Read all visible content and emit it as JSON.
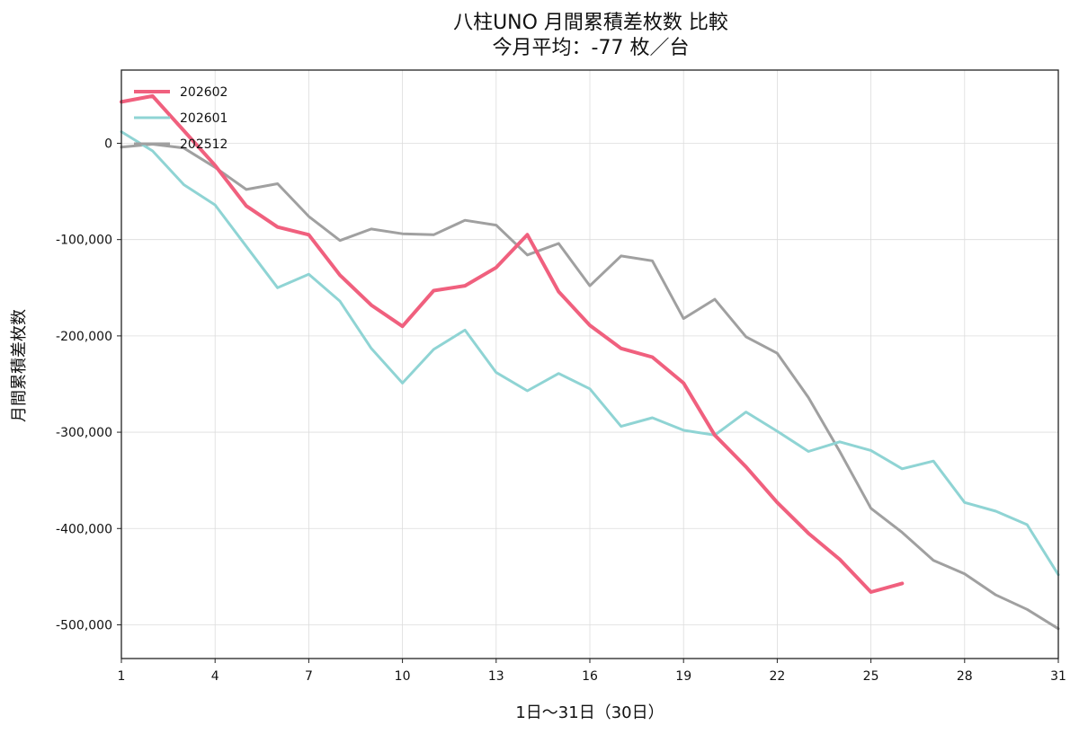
{
  "chart_data": {
    "type": "line",
    "title": "八柱UNO 月間累積差枚数 比較",
    "subtitle": "今月平均：-77 枚／台",
    "xlabel": "1日〜31日（30日）",
    "ylabel": "月間累積差枚数",
    "xlim": [
      1,
      31
    ],
    "ylim": [
      -535000,
      76000
    ],
    "xticks": [
      1,
      4,
      7,
      10,
      13,
      16,
      19,
      22,
      25,
      28,
      31
    ],
    "xtick_labels": [
      "1",
      "4",
      "7",
      "10",
      "13",
      "16",
      "19",
      "22",
      "25",
      "28",
      "31"
    ],
    "yticks": [
      0,
      -100000,
      -200000,
      -300000,
      -400000,
      -500000
    ],
    "ytick_labels": [
      "0",
      "-100,000",
      "-200,000",
      "-300,000",
      "-400,000",
      "-500,000"
    ],
    "grid": true,
    "legend_position": "top-left",
    "series": [
      {
        "name": "202602",
        "color": "#f0607e",
        "emphasis": true,
        "x": [
          1,
          2,
          3,
          4,
          5,
          6,
          7,
          8,
          9,
          10,
          11,
          12,
          13,
          14,
          15,
          16,
          17,
          18,
          19,
          20,
          21,
          22,
          23,
          24,
          25,
          26
        ],
        "values": [
          43000,
          49000,
          13000,
          -23000,
          -65000,
          -87000,
          -95000,
          -137000,
          -168000,
          -190000,
          -153000,
          -148000,
          -129000,
          -95000,
          -154000,
          -189000,
          -213000,
          -222000,
          -249000,
          -303000,
          -336000,
          -373000,
          -405000,
          -432000,
          -466000,
          -457000
        ]
      },
      {
        "name": "202601",
        "color": "#8fd4d4",
        "emphasis": false,
        "x": [
          1,
          2,
          3,
          4,
          5,
          6,
          7,
          8,
          9,
          10,
          11,
          12,
          13,
          14,
          15,
          16,
          17,
          18,
          19,
          20,
          21,
          22,
          23,
          24,
          25,
          26,
          27,
          28,
          29,
          30,
          31
        ],
        "values": [
          12000,
          -8000,
          -43000,
          -64000,
          -107000,
          -150000,
          -136000,
          -164000,
          -213000,
          -249000,
          -214000,
          -194000,
          -238000,
          -257000,
          -239000,
          -255000,
          -294000,
          -285000,
          -298000,
          -303000,
          -279000,
          -299000,
          -320000,
          -310000,
          -319000,
          -338000,
          -330000,
          -373000,
          -382000,
          -396000,
          -448000
        ]
      },
      {
        "name": "202512",
        "color": "#a0a0a0",
        "emphasis": false,
        "x": [
          1,
          2,
          3,
          4,
          5,
          6,
          7,
          8,
          9,
          10,
          11,
          12,
          13,
          14,
          15,
          16,
          17,
          18,
          19,
          20,
          21,
          22,
          23,
          24,
          25,
          26,
          27,
          28,
          29,
          30,
          31
        ],
        "values": [
          -4000,
          -1000,
          -5000,
          -25000,
          -48000,
          -42000,
          -76000,
          -101000,
          -89000,
          -94000,
          -95000,
          -80000,
          -85000,
          -116000,
          -104000,
          -148000,
          -117000,
          -122000,
          -182000,
          -162000,
          -201000,
          -218000,
          -264000,
          -320000,
          -379000,
          -404000,
          -433000,
          -447000,
          -469000,
          -484000,
          -504000
        ]
      }
    ]
  }
}
